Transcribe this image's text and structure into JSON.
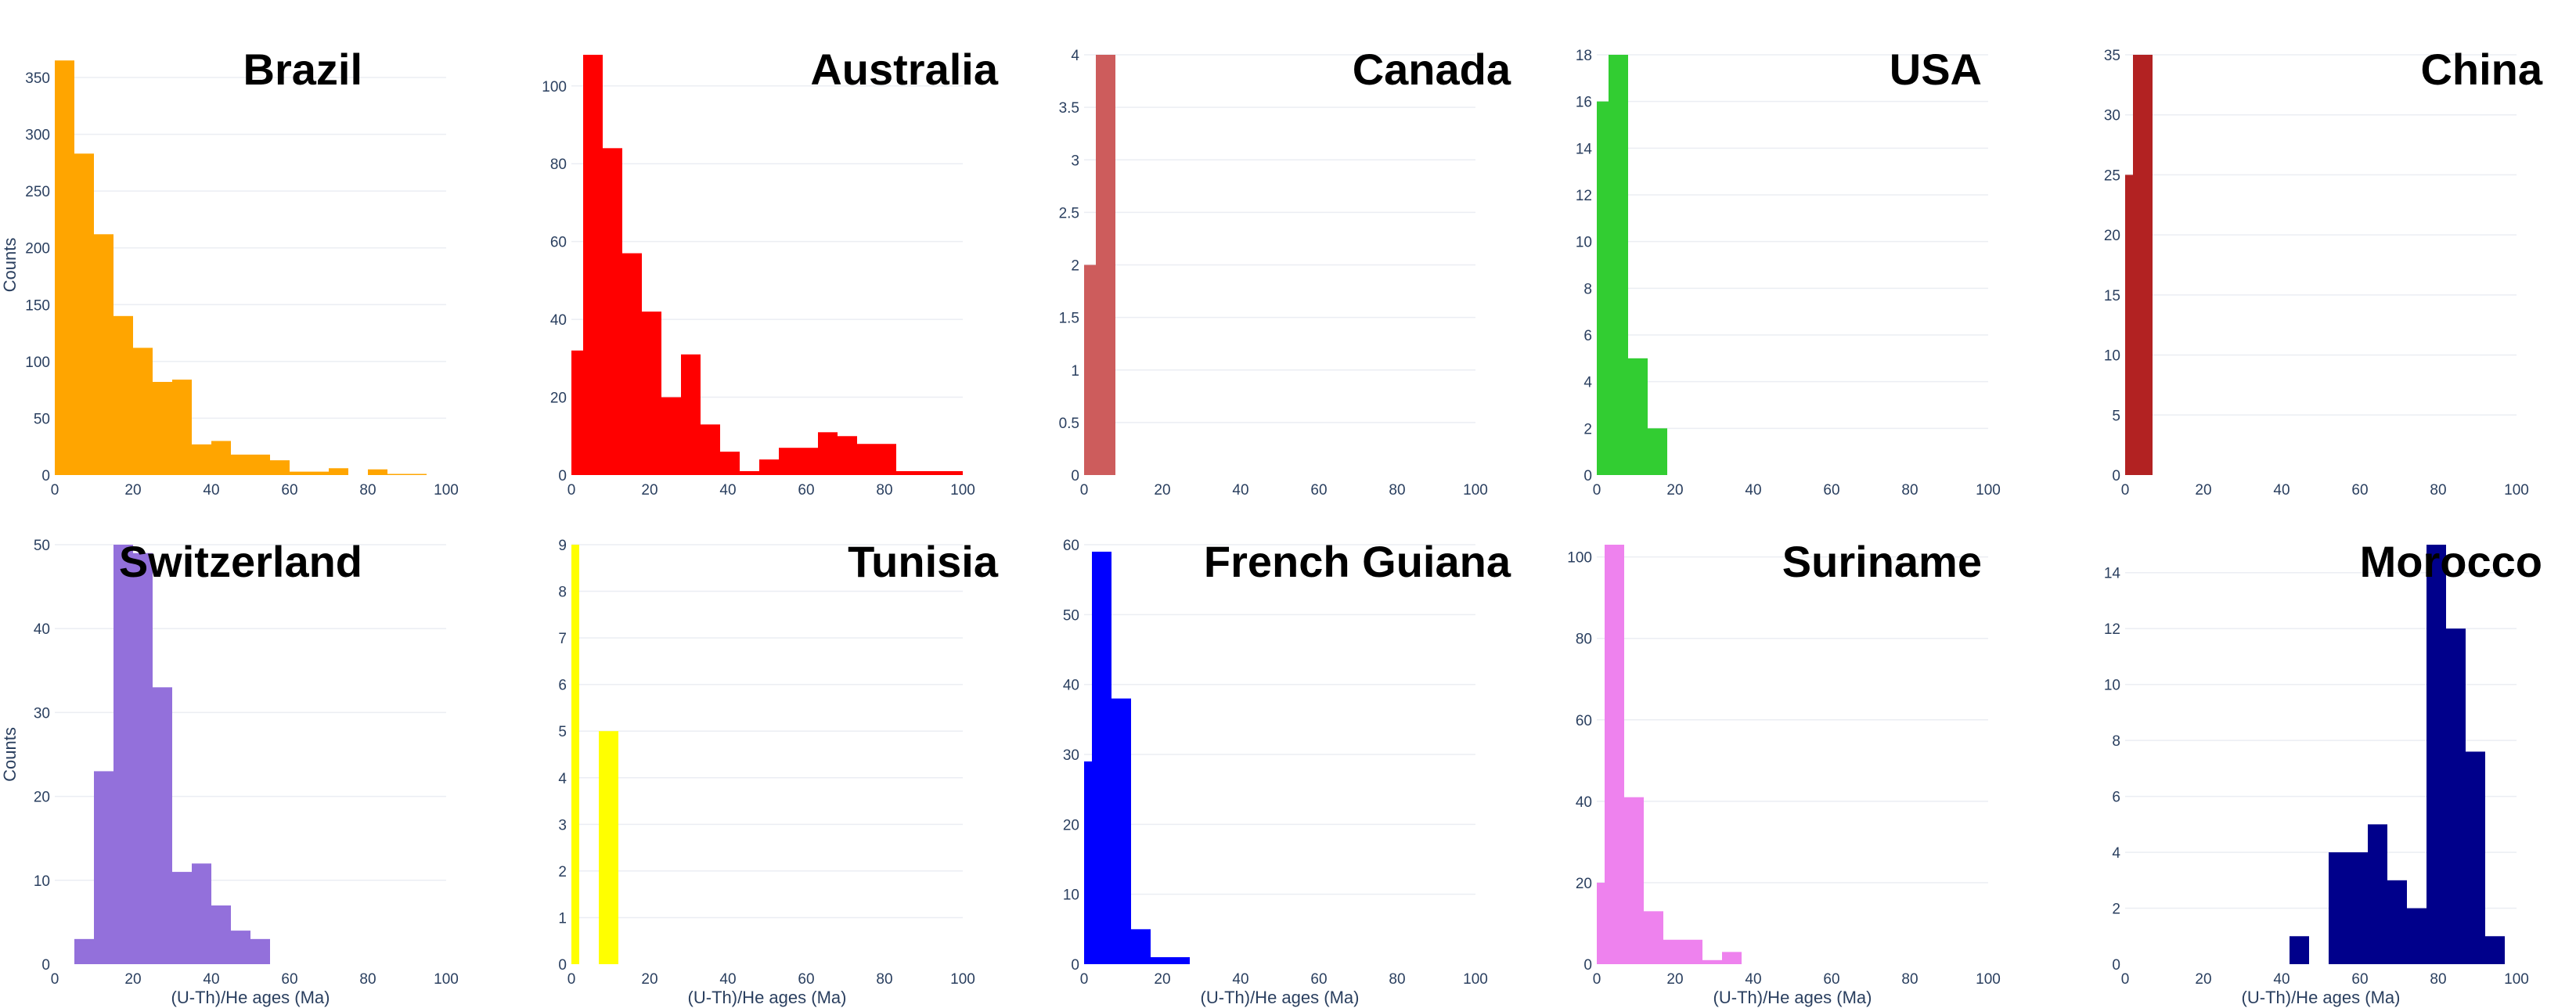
{
  "chart_data": [
    {
      "type": "bar",
      "title": "Brazil",
      "color": "#FFA500",
      "ylabel": "Counts",
      "xlabel": "",
      "xlim": [
        0,
        100
      ],
      "ylim": [
        0,
        370
      ],
      "xticks": [
        0,
        20,
        40,
        60,
        80,
        100
      ],
      "yticks": [
        0,
        50,
        100,
        150,
        200,
        250,
        300,
        350
      ],
      "bin_edges": [
        0,
        5,
        10,
        15,
        20,
        25,
        30,
        35,
        40,
        45,
        50,
        55,
        60,
        65,
        70,
        75,
        80,
        85,
        90,
        95
      ],
      "values": [
        365,
        283,
        212,
        140,
        112,
        82,
        84,
        27,
        30,
        18,
        18,
        13,
        3,
        3,
        6,
        0,
        5,
        1,
        1
      ]
    },
    {
      "type": "bar",
      "title": "Australia",
      "color": "#FF0000",
      "ylabel": "",
      "xlabel": "",
      "xlim": [
        0,
        100
      ],
      "ylim": [
        0,
        108
      ],
      "xticks": [
        0,
        20,
        40,
        60,
        80,
        100
      ],
      "yticks": [
        0,
        20,
        40,
        60,
        80,
        100
      ],
      "bin_edges": [
        0,
        3,
        8,
        13,
        18,
        23,
        28,
        33,
        38,
        43,
        48,
        53,
        58,
        63,
        68,
        73,
        78,
        83,
        88,
        94,
        100
      ],
      "values": [
        32,
        108,
        84,
        57,
        42,
        20,
        31,
        13,
        6,
        1,
        4,
        7,
        7,
        11,
        10,
        8,
        8,
        1,
        1,
        1
      ]
    },
    {
      "type": "bar",
      "title": "Canada",
      "color": "#CD5C5C",
      "ylabel": "",
      "xlabel": "",
      "xlim": [
        0,
        100
      ],
      "ylim": [
        0,
        4
      ],
      "xticks": [
        0,
        20,
        40,
        60,
        80,
        100
      ],
      "yticks": [
        0,
        0.5,
        1,
        1.5,
        2,
        2.5,
        3,
        3.5,
        4
      ],
      "bin_edges": [
        0,
        3,
        8
      ],
      "values": [
        2,
        4
      ]
    },
    {
      "type": "bar",
      "title": "USA",
      "color": "#32CD32",
      "ylabel": "",
      "xlabel": "",
      "xlim": [
        0,
        100
      ],
      "ylim": [
        0,
        18
      ],
      "xticks": [
        0,
        20,
        40,
        60,
        80,
        100
      ],
      "yticks": [
        0,
        2,
        4,
        6,
        8,
        10,
        12,
        14,
        16,
        18
      ],
      "bin_edges": [
        0,
        3,
        8,
        13,
        18
      ],
      "values": [
        16,
        18,
        5,
        2
      ]
    },
    {
      "type": "bar",
      "title": "China",
      "color": "#B22222",
      "ylabel": "",
      "xlabel": "",
      "xlim": [
        0,
        100
      ],
      "ylim": [
        0,
        35
      ],
      "xticks": [
        0,
        20,
        40,
        60,
        80,
        100
      ],
      "yticks": [
        0,
        5,
        10,
        15,
        20,
        25,
        30,
        35
      ],
      "bin_edges": [
        0,
        2,
        7
      ],
      "values": [
        25,
        35
      ]
    },
    {
      "type": "bar",
      "title": "Switzerland",
      "color": "#9370DB",
      "ylabel": "Counts",
      "xlabel": "(U-Th)/He ages (Ma)",
      "xlim": [
        0,
        100
      ],
      "ylim": [
        0,
        50
      ],
      "xticks": [
        0,
        20,
        40,
        60,
        80,
        100
      ],
      "yticks": [
        0,
        10,
        20,
        30,
        40,
        50
      ],
      "bin_edges": [
        5,
        10,
        15,
        20,
        25,
        30,
        35,
        40,
        45,
        50,
        55,
        60
      ],
      "values": [
        3,
        23,
        50,
        49,
        33,
        11,
        12,
        7,
        4,
        3,
        0
      ]
    },
    {
      "type": "bar",
      "title": "Tunisia",
      "color": "#FFFF00",
      "ylabel": "",
      "xlabel": "(U-Th)/He ages (Ma)",
      "xlim": [
        0,
        100
      ],
      "ylim": [
        0,
        9
      ],
      "xticks": [
        0,
        20,
        40,
        60,
        80,
        100
      ],
      "yticks": [
        0,
        1,
        2,
        3,
        4,
        5,
        6,
        7,
        8,
        9
      ],
      "bin_edges": [
        0,
        2,
        7,
        12
      ],
      "values": [
        9,
        0,
        5
      ]
    },
    {
      "type": "bar",
      "title": "French Guiana",
      "color": "#0000FF",
      "ylabel": "",
      "xlabel": "(U-Th)/He ages (Ma)",
      "xlim": [
        0,
        100
      ],
      "ylim": [
        0,
        60
      ],
      "xticks": [
        0,
        20,
        40,
        60,
        80,
        100
      ],
      "yticks": [
        0,
        10,
        20,
        30,
        40,
        50,
        60
      ],
      "bin_edges": [
        0,
        2,
        7,
        12,
        17,
        22,
        27
      ],
      "values": [
        29,
        59,
        38,
        5,
        1,
        1
      ]
    },
    {
      "type": "bar",
      "title": "Suriname",
      "color": "#EE82EE",
      "ylabel": "",
      "xlabel": "(U-Th)/He ages (Ma)",
      "xlim": [
        0,
        100
      ],
      "ylim": [
        0,
        103
      ],
      "xticks": [
        0,
        20,
        40,
        60,
        80,
        100
      ],
      "yticks": [
        0,
        20,
        40,
        60,
        80,
        100
      ],
      "bin_edges": [
        0,
        2,
        7,
        12,
        17,
        22,
        27,
        32,
        37
      ],
      "values": [
        20,
        103,
        41,
        13,
        6,
        6,
        1,
        3
      ]
    },
    {
      "type": "bar",
      "title": "Morocco",
      "color": "#00008B",
      "ylabel": "",
      "xlabel": "(U-Th)/He ages (Ma)",
      "xlim": [
        0,
        100
      ],
      "ylim": [
        0,
        15
      ],
      "xticks": [
        0,
        20,
        40,
        60,
        80,
        100
      ],
      "yticks": [
        0,
        2,
        4,
        6,
        8,
        10,
        12,
        14
      ],
      "bin_edges": [
        42,
        47,
        52,
        57,
        62,
        67,
        72,
        77,
        82,
        87,
        92,
        97
      ],
      "values": [
        1,
        0,
        4,
        4,
        5,
        3,
        2,
        15,
        12,
        7.6,
        1
      ]
    }
  ]
}
